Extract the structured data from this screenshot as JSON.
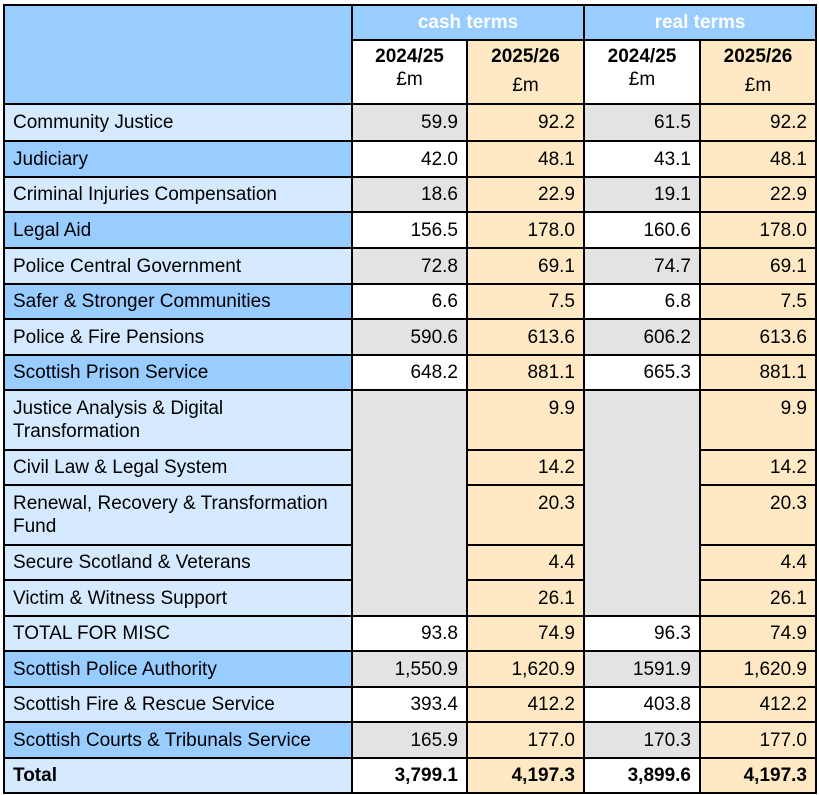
{
  "header": {
    "groups": [
      "cash terms",
      "real terms"
    ],
    "columns": [
      {
        "year": "2024/25",
        "unit": "£m"
      },
      {
        "year": "2025/26",
        "unit": "£m"
      },
      {
        "year": "2024/25",
        "unit": "£m"
      },
      {
        "year": "2025/26",
        "unit": "£m"
      }
    ]
  },
  "rows": [
    {
      "label": "Community Justice",
      "values": [
        "59.9",
        "92.2",
        "61.5",
        "92.2"
      ]
    },
    {
      "label": "Judiciary",
      "values": [
        "42.0",
        "48.1",
        "43.1",
        "48.1"
      ]
    },
    {
      "label": "Criminal Injuries Compensation",
      "values": [
        "18.6",
        "22.9",
        "19.1",
        "22.9"
      ]
    },
    {
      "label": "Legal Aid",
      "values": [
        "156.5",
        "178.0",
        "160.6",
        "178.0"
      ]
    },
    {
      "label": "Police Central Government",
      "values": [
        "72.8",
        "69.1",
        "74.7",
        "69.1"
      ]
    },
    {
      "label": "Safer & Stronger Communities",
      "values": [
        "6.6",
        "7.5",
        "6.8",
        "7.5"
      ]
    },
    {
      "label": "Police & Fire Pensions",
      "values": [
        "590.6",
        "613.6",
        "606.2",
        "613.6"
      ]
    },
    {
      "label": "Scottish Prison Service",
      "values": [
        "648.2",
        "881.1",
        "665.3",
        "881.1"
      ]
    },
    {
      "label": "Justice Analysis & Digital Transformation",
      "values": [
        "",
        "9.9",
        "",
        "9.9"
      ]
    },
    {
      "label": "Civil Law & Legal System",
      "values": [
        "",
        "14.2",
        "",
        "14.2"
      ]
    },
    {
      "label": "Renewal, Recovery & Transformation Fund",
      "values": [
        "",
        "20.3",
        "",
        "20.3"
      ]
    },
    {
      "label": "Secure Scotland & Veterans",
      "values": [
        "",
        "4.4",
        "",
        "4.4"
      ]
    },
    {
      "label": "Victim & Witness Support",
      "values": [
        "",
        "26.1",
        "",
        "26.1"
      ]
    },
    {
      "label": "TOTAL FOR MISC",
      "values": [
        "93.8",
        "74.9",
        "96.3",
        "74.9"
      ]
    },
    {
      "label": "Scottish Police Authority",
      "values": [
        "1,550.9",
        "1,620.9",
        "1591.9",
        "1,620.9"
      ]
    },
    {
      "label": "Scottish Fire & Rescue Service",
      "values": [
        "393.4",
        "412.2",
        "403.8",
        "412.2"
      ]
    },
    {
      "label": "Scottish Courts & Tribunals Service",
      "values": [
        "165.9",
        "177.0",
        "170.3",
        "177.0"
      ]
    }
  ],
  "total": {
    "label": "Total",
    "values": [
      "3,799.1",
      "4,197.3",
      "3,899.6",
      "4,197.3"
    ]
  },
  "colors": {
    "header_blue": "#99ccff",
    "label_light": "#d5e9ff",
    "grey_cell": "#e3e3e3",
    "orange_cell": "#ffe9c4"
  }
}
